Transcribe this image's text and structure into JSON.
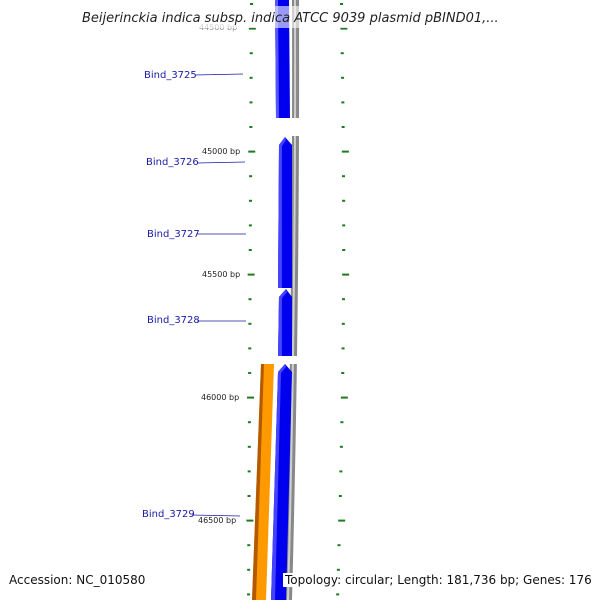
{
  "title": "Beijerinckia indica subsp. indica ATCC 9039 plasmid pBIND01,...",
  "footer": {
    "accession": "Accession: NC_010580",
    "topology": "Topology: circular; Length: 181,736 bp; Genes: 176"
  },
  "genes": [
    {
      "name": "Bind_3725",
      "strand": "reverse",
      "feature": "CDS"
    },
    {
      "name": "Bind_3726",
      "strand": "reverse",
      "feature": "CDS"
    },
    {
      "name": "Bind_3727",
      "strand": "reverse",
      "feature": "CDS"
    },
    {
      "name": "Bind_3728",
      "strand": "reverse",
      "feature": "CDS"
    },
    {
      "name": "Bind_3729",
      "strand": "reverse",
      "feature": "CDS"
    }
  ],
  "position_labels": [
    "44500 bp",
    "45000 bp",
    "45500 bp",
    "46000 bp",
    "46500 bp"
  ],
  "colors": {
    "cds": "#0000ee",
    "other_feature": "#ff9900",
    "backbone": "#999999",
    "gene_label": "#1a1aa6",
    "tick": "#1f7a1f"
  }
}
